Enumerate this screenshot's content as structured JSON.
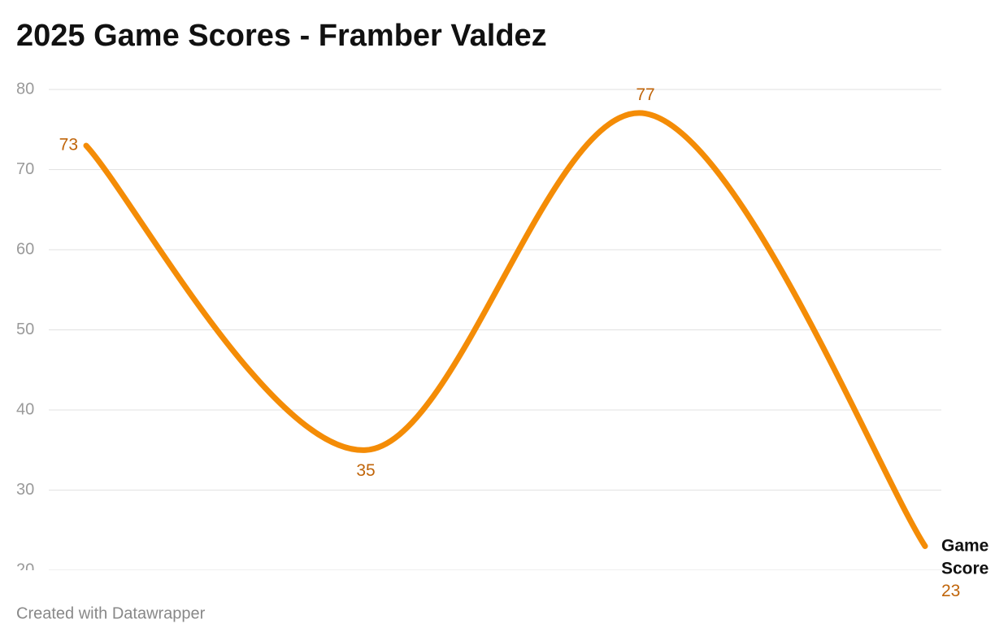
{
  "chart_data": {
    "type": "line",
    "title": "2025 Game Scores - Framber Valdez",
    "categories": [
      null,
      null,
      null,
      null
    ],
    "series": [
      {
        "name": "Game Score",
        "color": "#f48c06",
        "values": [
          73,
          35,
          77,
          23
        ]
      }
    ],
    "ylim": [
      20,
      80
    ],
    "yticks": [
      20,
      30,
      40,
      50,
      60,
      70,
      80
    ],
    "grid": true,
    "footer": "Created with Datawrapper"
  }
}
